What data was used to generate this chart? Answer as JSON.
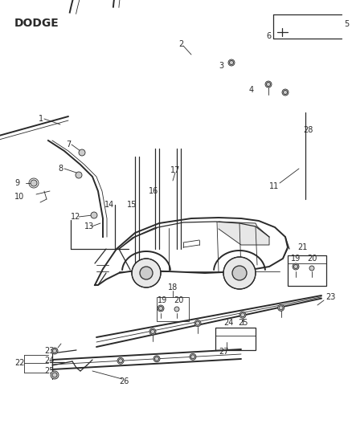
{
  "title": "DODGE",
  "background_color": "#ffffff",
  "line_color": "#2a2a2a",
  "fig_width": 4.38,
  "fig_height": 5.33,
  "dpi": 100
}
